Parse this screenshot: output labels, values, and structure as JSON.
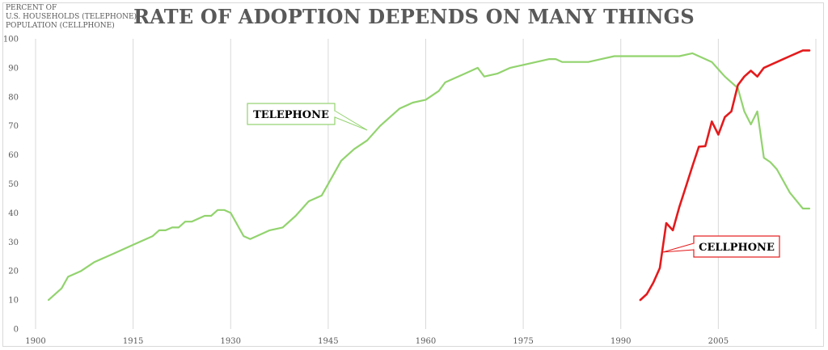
{
  "chart_data": {
    "type": "line",
    "title": "RATE OF ADOPTION DEPENDS ON MANY THINGS",
    "ylabel_lines": [
      "PERCENT OF",
      "U.S. HOUSEHOLDS (TELEPHONE)",
      "POPULATION (CELLPHONE)"
    ],
    "xlim": [
      1900,
      2020
    ],
    "ylim": [
      0,
      100
    ],
    "x_ticks": [
      1900,
      1915,
      1930,
      1945,
      1960,
      1975,
      1990,
      2005
    ],
    "y_ticks": [
      0,
      10,
      20,
      30,
      40,
      50,
      60,
      70,
      80,
      90,
      100
    ],
    "grid": {
      "vertical": true,
      "horizontal": false
    },
    "colors": {
      "telephone": "#92d36e",
      "cellphone": "#e41a1c",
      "grid": "#d9d9d9",
      "text": "#595959"
    },
    "series": [
      {
        "name": "TELEPHONE",
        "x": [
          1902,
          1904,
          1905,
          1907,
          1909,
          1912,
          1915,
          1918,
          1919,
          1920,
          1921,
          1922,
          1923,
          1924,
          1925,
          1926,
          1927,
          1928,
          1929,
          1930,
          1932,
          1933,
          1935,
          1936,
          1938,
          1940,
          1942,
          1944,
          1947,
          1949,
          1951,
          1953,
          1955,
          1956,
          1958,
          1960,
          1962,
          1963,
          1964,
          1966,
          1968,
          1969,
          1971,
          1973,
          1975,
          1977,
          1979,
          1980,
          1981,
          1983,
          1985,
          1987,
          1989,
          1991,
          1993,
          1995,
          1997,
          1999,
          2001,
          2003,
          2004,
          2006,
          2008,
          2009,
          2010,
          2011,
          2012,
          2013,
          2014,
          2016,
          2018,
          2019
        ],
        "values": [
          10,
          14,
          18,
          20,
          23,
          26,
          29,
          32,
          34,
          34,
          35,
          35,
          37,
          37,
          38,
          39,
          39,
          41,
          41,
          40,
          32,
          31,
          33,
          34,
          35,
          39,
          44,
          46,
          58,
          62,
          65,
          70,
          74,
          76,
          78,
          79,
          82,
          85,
          86,
          88,
          90,
          87,
          88,
          90,
          91,
          92,
          93,
          93,
          92,
          92,
          92,
          93,
          94,
          94,
          94,
          94,
          94,
          94,
          95,
          93,
          92,
          87,
          83,
          75,
          70.5,
          75,
          59,
          57.5,
          55,
          47,
          41.5,
          41.5
        ]
      },
      {
        "name": "CELLPHONE",
        "x": [
          1993,
          1994,
          1995,
          1996,
          1997,
          1998,
          1999,
          2000,
          2001,
          2002,
          2003,
          2004,
          2005,
          2006,
          2007,
          2008,
          2009,
          2010,
          2011,
          2012,
          2013,
          2014,
          2015,
          2016,
          2017,
          2018,
          2019
        ],
        "values": [
          10,
          12,
          16,
          21,
          36.5,
          34,
          42,
          49,
          56,
          62.8,
          63,
          71.5,
          67,
          73,
          75,
          84,
          87,
          89,
          87,
          90,
          91,
          92,
          93,
          94,
          95,
          96,
          96
        ]
      }
    ],
    "annotations": [
      {
        "text": "TELEPHONE",
        "series": "TELEPHONE",
        "point": [
          1951,
          68.5
        ]
      },
      {
        "text": "CELLPHONE",
        "series": "CELLPHONE",
        "point": [
          1996.5,
          26.5
        ]
      }
    ]
  }
}
